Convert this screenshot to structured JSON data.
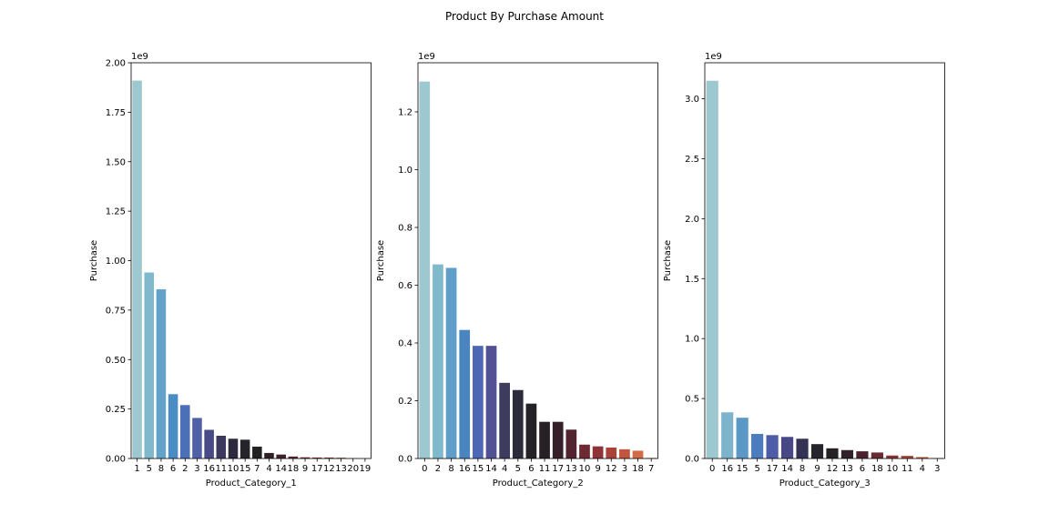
{
  "figure": {
    "title": "Product By Purchase Amount"
  },
  "chart_data": [
    {
      "type": "bar",
      "xlabel": "Product_Category_1",
      "ylabel": "Purchase",
      "offset_label": "1e9",
      "ylim": [
        0,
        2.0
      ],
      "yticks": [
        "0.00",
        "0.25",
        "0.50",
        "0.75",
        "1.00",
        "1.25",
        "1.50",
        "1.75",
        "2.00"
      ],
      "ytick_values": [
        0,
        0.25,
        0.5,
        0.75,
        1.0,
        1.25,
        1.5,
        1.75,
        2.0
      ],
      "categories": [
        "1",
        "5",
        "8",
        "6",
        "2",
        "3",
        "16",
        "11",
        "10",
        "15",
        "7",
        "4",
        "14",
        "18",
        "9",
        "17",
        "12",
        "13",
        "20",
        "19"
      ],
      "values": [
        1.91,
        0.94,
        0.855,
        0.325,
        0.27,
        0.205,
        0.145,
        0.115,
        0.1,
        0.095,
        0.06,
        0.028,
        0.02,
        0.01,
        0.006,
        0.005,
        0.005,
        0.004,
        0.0009,
        0.0001
      ],
      "colors": [
        "#9ec8cf",
        "#80b8cc",
        "#63a3c9",
        "#4a8cc4",
        "#4b70b8",
        "#5060a8",
        "#4a4a86",
        "#3b3a5e",
        "#2c2b3e",
        "#25242a",
        "#232022",
        "#2e2125",
        "#41222b",
        "#5a2630",
        "#722b33",
        "#8c3135",
        "#a53d37",
        "#bd4f3d",
        "#cf6442",
        "#dd7f4e"
      ]
    },
    {
      "type": "bar",
      "xlabel": "Product_Category_2",
      "ylabel": "Purchase",
      "offset_label": "1e9",
      "ylim": [
        0,
        1.37
      ],
      "yticks": [
        "0.0",
        "0.2",
        "0.4",
        "0.6",
        "0.8",
        "1.0",
        "1.2"
      ],
      "ytick_values": [
        0,
        0.2,
        0.4,
        0.6,
        0.8,
        1.0,
        1.2
      ],
      "categories": [
        "0",
        "2",
        "8",
        "16",
        "15",
        "14",
        "4",
        "5",
        "6",
        "11",
        "17",
        "13",
        "10",
        "9",
        "12",
        "3",
        "18",
        "7"
      ],
      "values": [
        1.305,
        0.672,
        0.66,
        0.445,
        0.39,
        0.39,
        0.262,
        0.237,
        0.19,
        0.127,
        0.127,
        0.1,
        0.048,
        0.042,
        0.038,
        0.032,
        0.027,
        0.002
      ],
      "colors": [
        "#9ec8cf",
        "#80b8cc",
        "#5e9ec8",
        "#4a85c0",
        "#4d67b4",
        "#535196",
        "#3d3c5e",
        "#2c2b3c",
        "#242226",
        "#272024",
        "#35202a",
        "#512430",
        "#6e2a33",
        "#8e3337",
        "#ab4238",
        "#c2563d",
        "#d36c45",
        "#dd824f"
      ]
    },
    {
      "type": "bar",
      "xlabel": "Product_Category_3",
      "ylabel": "Purchase",
      "offset_label": "1e9",
      "ylim": [
        0,
        3.3
      ],
      "yticks": [
        "0.0",
        "0.5",
        "1.0",
        "1.5",
        "2.0",
        "2.5",
        "3.0"
      ],
      "ytick_values": [
        0,
        0.5,
        1.0,
        1.5,
        2.0,
        2.5,
        3.0
      ],
      "categories": [
        "0",
        "16",
        "15",
        "5",
        "17",
        "14",
        "8",
        "9",
        "12",
        "13",
        "6",
        "18",
        "10",
        "11",
        "4",
        "3"
      ],
      "values": [
        3.15,
        0.385,
        0.34,
        0.205,
        0.195,
        0.18,
        0.165,
        0.12,
        0.085,
        0.07,
        0.06,
        0.05,
        0.025,
        0.022,
        0.012,
        0.004
      ],
      "colors": [
        "#9ec8cf",
        "#7db4cc",
        "#5b98c6",
        "#4a7cbe",
        "#4f5ca8",
        "#474885",
        "#333253",
        "#26252e",
        "#242024",
        "#30202a",
        "#4b2330",
        "#6a2933",
        "#8b3236",
        "#a94238",
        "#c3583e",
        "#d67248"
      ]
    }
  ]
}
